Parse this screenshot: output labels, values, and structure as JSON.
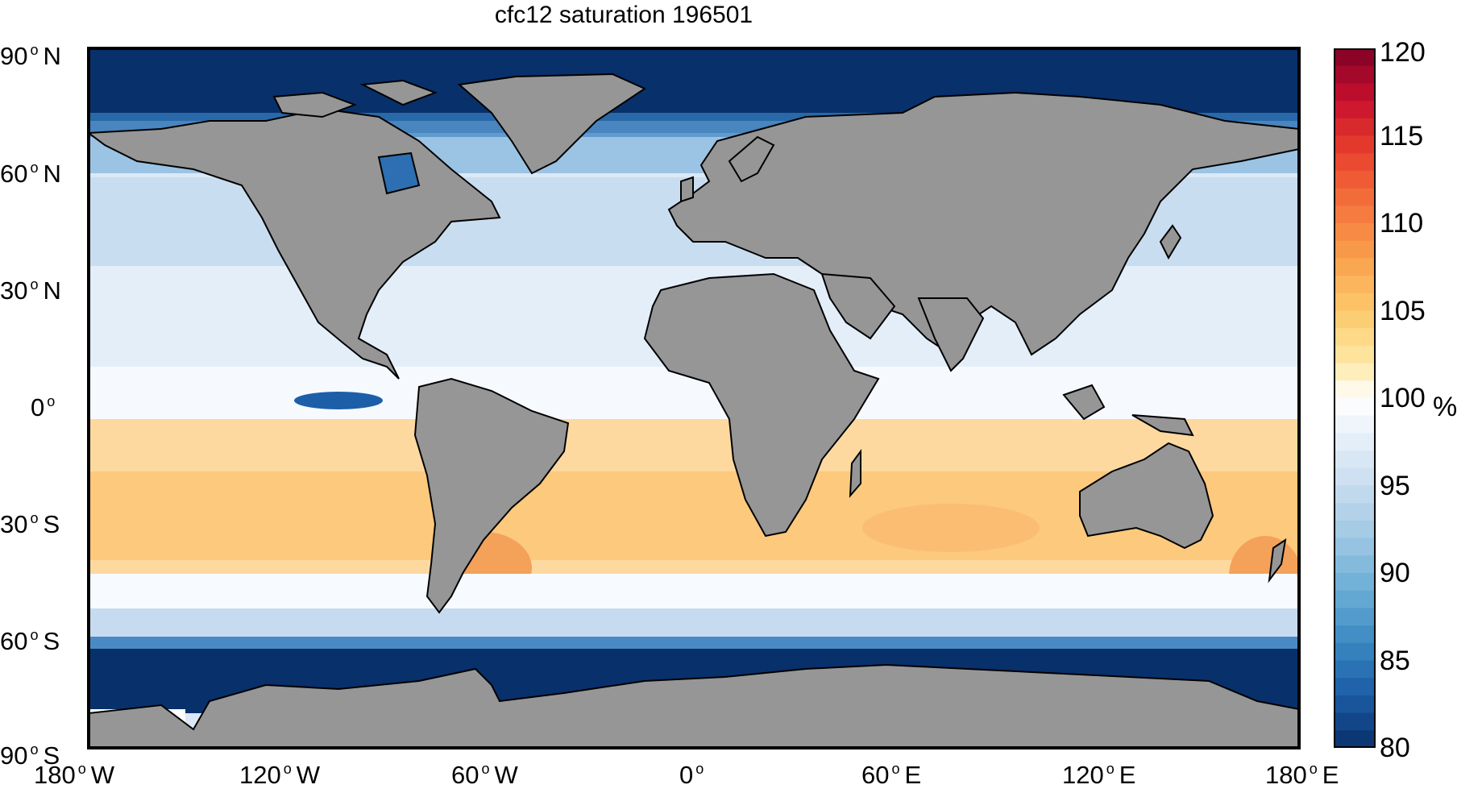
{
  "title": "cfc12 saturation 196501",
  "latitude_labels": [
    {
      "value": "90",
      "hemisphere": "N"
    },
    {
      "value": "60",
      "hemisphere": "N"
    },
    {
      "value": "30",
      "hemisphere": "N"
    },
    {
      "value": "0",
      "hemisphere": ""
    },
    {
      "value": "30",
      "hemisphere": "S"
    },
    {
      "value": "60",
      "hemisphere": "S"
    },
    {
      "value": "90",
      "hemisphere": "S"
    }
  ],
  "longitude_labels": [
    {
      "value": "180",
      "hemisphere": "W"
    },
    {
      "value": "120",
      "hemisphere": "W"
    },
    {
      "value": "60",
      "hemisphere": "W"
    },
    {
      "value": "0",
      "hemisphere": ""
    },
    {
      "value": "60",
      "hemisphere": "E"
    },
    {
      "value": "120",
      "hemisphere": "E"
    },
    {
      "value": "180",
      "hemisphere": "E"
    }
  ],
  "colorbar": {
    "unit": "%",
    "min": 80,
    "max": 120,
    "ticks": [
      "120",
      "115",
      "110",
      "105",
      "100",
      "95",
      "90",
      "85",
      "80"
    ],
    "colors": {
      "low": "#08306b",
      "mid_low": "#6baed6",
      "neutral": "#ffffff",
      "mid_high": "#fdae61",
      "high": "#800026"
    }
  },
  "map_colors": {
    "land": "#969696",
    "coastline": "#000000",
    "ocean_neutral": "#f7fbff",
    "ocean_undersaturated": "#08306b",
    "ocean_mildly_under": "#c6dbef",
    "ocean_oversaturated": "#fdd49e"
  }
}
